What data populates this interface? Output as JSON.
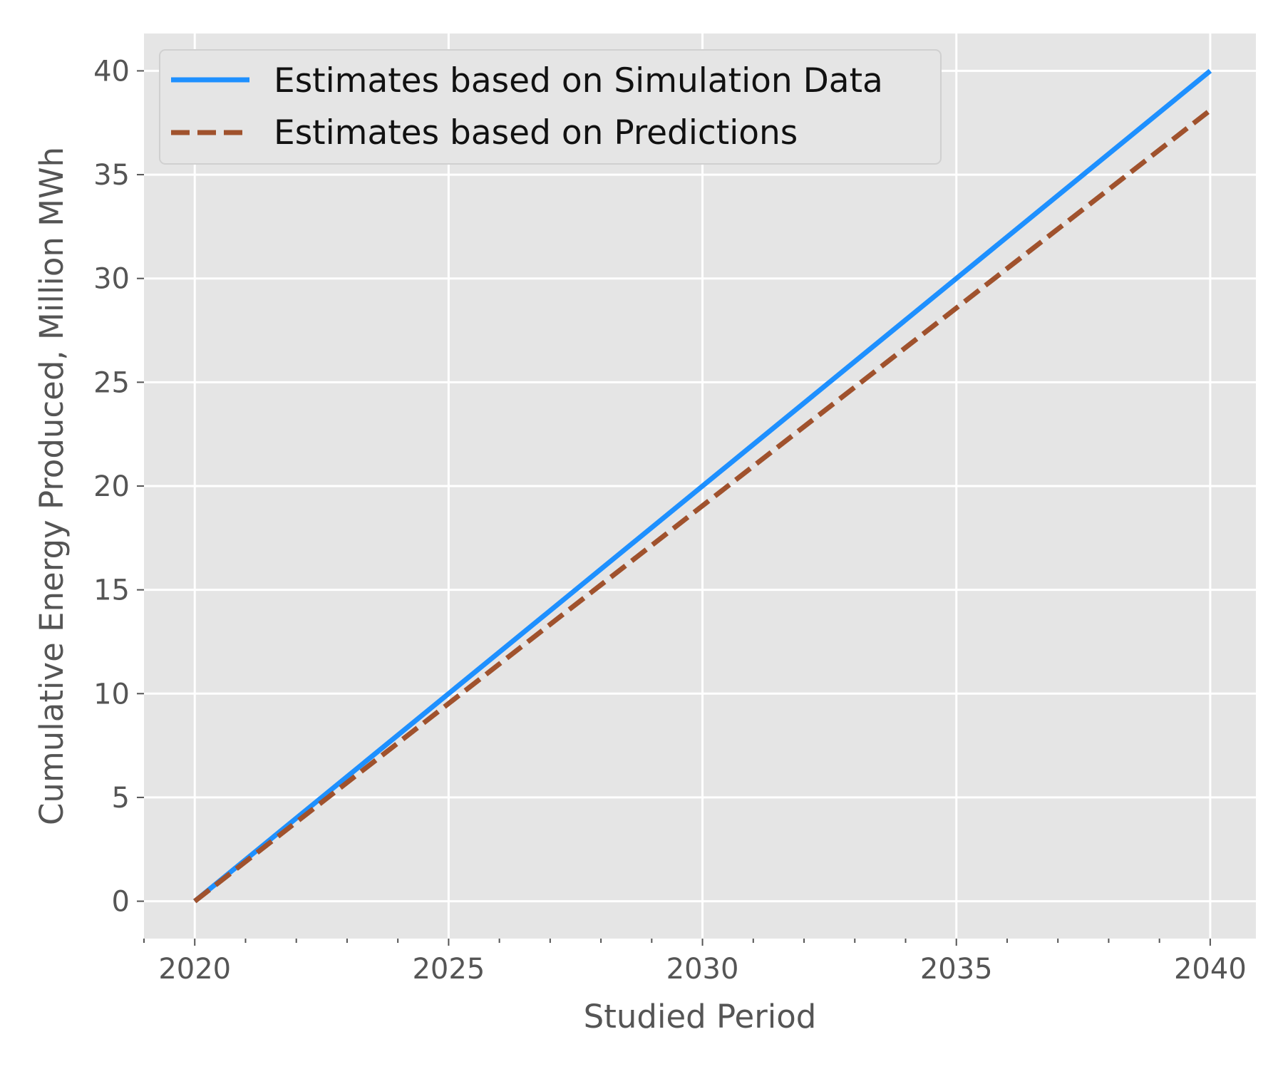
{
  "chart_data": {
    "type": "line",
    "title": "",
    "xlabel": "Studied Period",
    "ylabel": "Cumulative Energy Produced, Million MWh",
    "xlim": [
      2019,
      2040.9
    ],
    "ylim": [
      -1.8,
      41.8
    ],
    "x_ticks": [
      "2020",
      "2025",
      "2030",
      "2035",
      "2040"
    ],
    "x_tick_values": [
      2020,
      2025,
      2030,
      2035,
      2040
    ],
    "x_minor_tick_values": [
      2019,
      2021,
      2022,
      2023,
      2024,
      2026,
      2027,
      2028,
      2029,
      2031,
      2032,
      2033,
      2034,
      2036,
      2037,
      2038,
      2039
    ],
    "y_ticks": [
      "0",
      "5",
      "10",
      "15",
      "20",
      "25",
      "30",
      "35",
      "40"
    ],
    "y_tick_values": [
      0,
      5,
      10,
      15,
      20,
      25,
      30,
      35,
      40
    ],
    "grid": true,
    "legend_position": "top-left",
    "background": "#e5e5e5",
    "series": [
      {
        "name": "Estimates based on Simulation Data",
        "color": "#1e90ff",
        "style": "solid",
        "x": [
          2020,
          2040
        ],
        "y": [
          0,
          40
        ]
      },
      {
        "name": "Estimates based on Predictions",
        "color": "#a0522d",
        "style": "dashed",
        "x": [
          2020,
          2040
        ],
        "y": [
          0,
          38.1
        ]
      }
    ]
  }
}
